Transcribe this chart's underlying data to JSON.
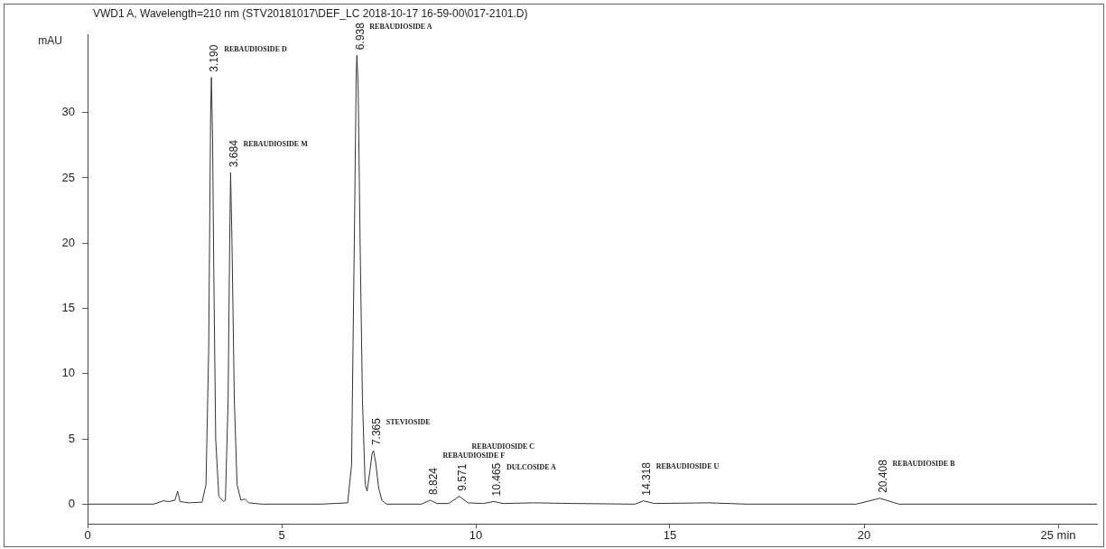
{
  "chart_data": {
    "type": "line",
    "title": "VWD1 A, Wavelength=210 nm (STV20181017\\DEF_LC 2018-10-17 16-59-00\\017-2101.D)",
    "ylabel": "mAU",
    "series": [
      {
        "color": "#333333",
        "x": [
          0,
          1.7,
          1.95,
          2.1,
          2.25,
          2.32,
          2.38,
          2.6,
          2.95,
          3.05,
          3.12,
          3.17,
          3.19,
          3.22,
          3.25,
          3.3,
          3.38,
          3.5,
          3.55,
          3.62,
          3.66,
          3.684,
          3.72,
          3.78,
          3.85,
          3.95,
          4.05,
          4.15,
          4.5,
          6.0,
          6.7,
          6.8,
          6.87,
          6.92,
          6.938,
          6.97,
          7.02,
          7.08,
          7.15,
          7.2,
          7.27,
          7.33,
          7.365,
          7.42,
          7.5,
          7.58,
          7.7,
          8.6,
          8.824,
          9.0,
          9.3,
          9.571,
          9.8,
          10.2,
          10.465,
          10.7,
          11.5,
          12.5,
          14.1,
          14.318,
          14.6,
          16,
          17,
          19.8,
          20.408,
          20.9,
          26
        ],
        "values": [
          0,
          0,
          0.25,
          0.2,
          0.3,
          1.0,
          0.2,
          0.1,
          0.15,
          1.5,
          12,
          30,
          32.7,
          28,
          18,
          5,
          0.6,
          0.2,
          0.3,
          8,
          20,
          25.4,
          20,
          8,
          1.5,
          0.3,
          0.4,
          0.1,
          0,
          0,
          0.1,
          3,
          20,
          33,
          34.4,
          32,
          20,
          8,
          1.5,
          1.0,
          2.5,
          3.9,
          4.1,
          3.2,
          1.2,
          0.3,
          0,
          0,
          0.3,
          0.05,
          0.05,
          0.6,
          0.1,
          0.05,
          0.2,
          0.05,
          0.1,
          0.05,
          0,
          0.25,
          0.05,
          0.1,
          0,
          0,
          0.45,
          0,
          0
        ]
      }
    ],
    "xlim": [
      0,
      26
    ],
    "xticks": [
      0,
      5,
      10,
      15,
      20,
      {
        "value": 25,
        "label": "25 min"
      }
    ],
    "ylim": [
      -1.5,
      36
    ],
    "yticks": [
      0,
      5,
      10,
      15,
      20,
      25,
      30
    ],
    "marker": "none",
    "line_style": "solid",
    "annotations": [
      "REBAUDIOSIDE D",
      "REBAUDIOSIDE M",
      "REBAUDIOSIDE A",
      "STEVIOSIDE",
      "REBAUDIOSIDE F",
      "REBAUDIOSIDE C",
      "DULCOSIDE A",
      "REBAUDIOSIDE U",
      "REBAUDIOSIDE B",
      {
        "text": "3.190",
        "x": 3.19,
        "y": 32.7
      },
      {
        "text": "3.684",
        "x": 3.684,
        "y": 25.4
      },
      {
        "text": "6.938",
        "x": 6.938,
        "y": 34.4
      },
      {
        "text": "7.365",
        "x": 7.365,
        "y": 4.1
      },
      {
        "text": "8.824",
        "x": 8.824,
        "y": 0.3
      },
      {
        "text": "9.571",
        "x": 9.571,
        "y": 0.6
      },
      {
        "text": "10.465",
        "x": 10.465,
        "y": 0.2
      },
      {
        "text": "14.318",
        "x": 14.318,
        "y": 0.25
      },
      {
        "text": "20.408",
        "x": 20.408,
        "y": 0.45
      }
    ]
  }
}
